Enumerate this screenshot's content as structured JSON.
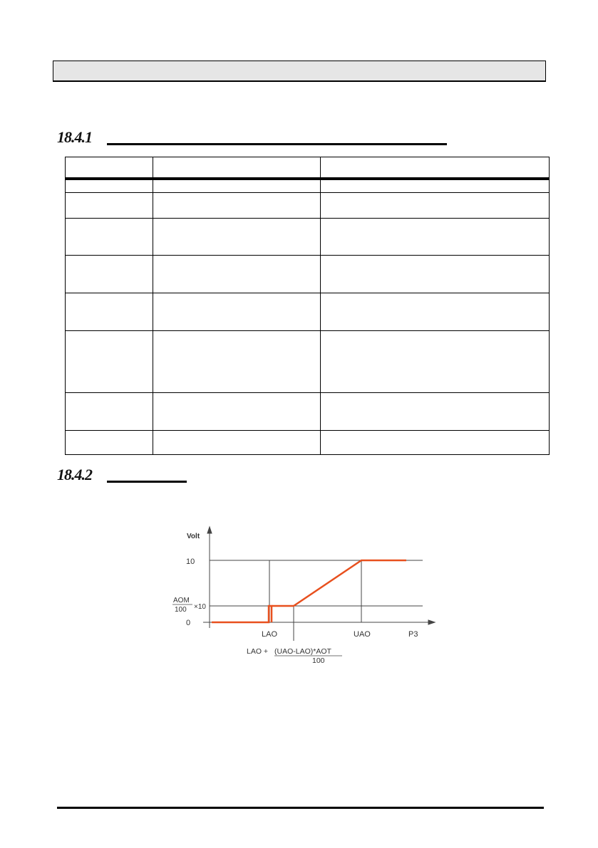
{
  "section_1": {
    "number": "18.4.1",
    "title": ""
  },
  "section_2": {
    "number": "18.4.2",
    "title": ""
  },
  "table": {
    "columns": [
      "",
      "",
      ""
    ],
    "rows": [
      [
        "",
        "",
        ""
      ],
      [
        "",
        "",
        ""
      ],
      [
        "",
        "",
        ""
      ],
      [
        "",
        "",
        ""
      ],
      [
        "",
        "",
        ""
      ],
      [
        "",
        "",
        ""
      ],
      [
        "",
        "",
        ""
      ],
      [
        "",
        "",
        ""
      ]
    ]
  },
  "graph": {
    "y_axis_label": "Volt",
    "y_tick_10": "10",
    "y_tick_aom_num": "AOM",
    "y_tick_aom_den": "100",
    "y_tick_aom_mult": "×10",
    "y_tick_0": "0",
    "x_tick_lao": "LAO",
    "x_tick_uao": "UAO",
    "x_axis_label": "P3",
    "formula_prefix": "LAO + ",
    "formula_num": "(UAO-LAO)*AOT",
    "formula_den": "100",
    "line_color": "#e8501e"
  }
}
